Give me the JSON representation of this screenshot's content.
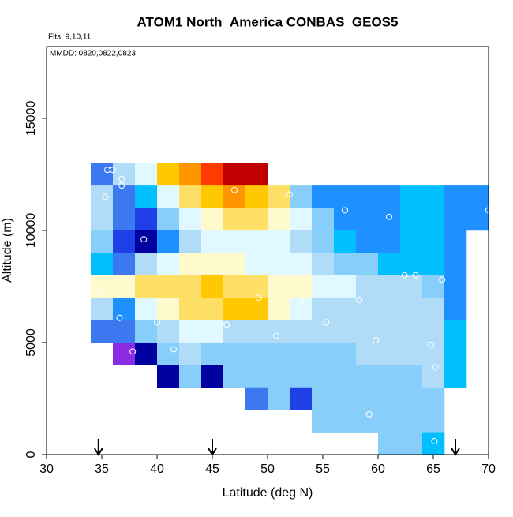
{
  "chart_data": {
    "type": "heatmap",
    "title": "ATOM1 North_America CONBAS_GEOS5",
    "flights_note": "Flts: 9,10,11",
    "dates_note": "MMDD: 0820,0822,0823",
    "x_label": "Latitude (deg N)",
    "y_label": "Altitude (m)",
    "xlim": [
      30,
      70
    ],
    "xticks": [
      30,
      35,
      40,
      45,
      50,
      55,
      60,
      65,
      70
    ],
    "ylim": [
      0,
      18200
    ],
    "yticks": [
      0,
      5000,
      10000,
      15000
    ],
    "x_edges": [
      34,
      36,
      38,
      40,
      42,
      44,
      46,
      48,
      50,
      52,
      54,
      56,
      58,
      60,
      62,
      64,
      66,
      68,
      70
    ],
    "y_edges": [
      13000,
      12000,
      11000,
      10000,
      9000,
      8000,
      7000,
      6000,
      5000,
      4000,
      3000,
      2000,
      1000,
      0
    ],
    "palette": [
      "#8a2be2",
      "#0000a0",
      "#1e40e6",
      "#3c78f0",
      "#1e90ff",
      "#00bfff",
      "#87cefa",
      "#b0dcf8",
      "#e0f8ff",
      "#fffacd",
      "#ffe066",
      "#ffc800",
      "#ff9600",
      "#ff3c00",
      "#c00000"
    ],
    "values": [
      [
        3,
        7,
        8,
        11,
        12,
        13,
        14,
        14,
        null,
        null,
        null,
        null,
        null,
        null,
        null,
        null,
        null,
        null
      ],
      [
        7,
        3,
        5,
        8,
        10,
        11,
        12,
        11,
        10,
        6,
        4,
        4,
        4,
        4,
        5,
        5,
        4,
        4
      ],
      [
        7,
        3,
        2,
        6,
        8,
        9,
        10,
        10,
        9,
        8,
        6,
        4,
        4,
        4,
        5,
        5,
        4,
        4
      ],
      [
        6,
        2,
        1,
        4,
        7,
        8,
        8,
        8,
        8,
        7,
        6,
        5,
        4,
        4,
        5,
        5,
        4,
        null
      ],
      [
        5,
        3,
        7,
        8,
        9,
        9,
        9,
        8,
        8,
        8,
        7,
        6,
        6,
        5,
        5,
        5,
        4,
        null
      ],
      [
        9,
        9,
        10,
        10,
        10,
        11,
        10,
        10,
        9,
        9,
        8,
        8,
        7,
        7,
        7,
        6,
        4,
        null
      ],
      [
        7,
        4,
        8,
        9,
        10,
        10,
        11,
        11,
        9,
        8,
        7,
        7,
        7,
        7,
        7,
        7,
        4,
        null
      ],
      [
        3,
        3,
        6,
        7,
        8,
        8,
        7,
        7,
        7,
        7,
        7,
        7,
        7,
        7,
        7,
        7,
        5,
        null
      ],
      [
        null,
        0,
        1,
        6,
        7,
        6,
        6,
        6,
        6,
        6,
        6,
        6,
        7,
        7,
        7,
        7,
        5,
        null
      ],
      [
        null,
        null,
        null,
        1,
        6,
        1,
        6,
        6,
        6,
        6,
        6,
        6,
        6,
        6,
        6,
        7,
        5,
        null
      ],
      [
        null,
        null,
        null,
        null,
        null,
        null,
        null,
        3,
        6,
        2,
        6,
        6,
        6,
        6,
        6,
        6,
        null,
        null
      ],
      [
        null,
        null,
        null,
        null,
        null,
        null,
        null,
        null,
        null,
        null,
        6,
        6,
        6,
        6,
        6,
        6,
        null,
        null
      ],
      [
        null,
        null,
        null,
        null,
        null,
        null,
        null,
        null,
        null,
        null,
        null,
        null,
        null,
        6,
        6,
        5,
        null,
        null
      ]
    ],
    "points": {
      "color": "#ffffff",
      "x": [
        35.5,
        36,
        36.8,
        36.8,
        35.3,
        47,
        52,
        57,
        61,
        70,
        38.8,
        62.4,
        63.4,
        65.8,
        34.9,
        49.2,
        53.2,
        58.3,
        36.6,
        40,
        55.3,
        46.3,
        50.8,
        59.8,
        64.8,
        41.5,
        37.8,
        65.2,
        59.2,
        65.1
      ],
      "y": [
        12700,
        12700,
        12300,
        12000,
        11500,
        11800,
        11600,
        10900,
        10600,
        10900,
        9600,
        8000,
        8000,
        7800,
        7200,
        7000,
        6800,
        6900,
        6100,
        5900,
        5900,
        5800,
        5300,
        5100,
        4900,
        4700,
        4600,
        3900,
        1800,
        600
      ]
    },
    "markers": [
      34.7,
      45,
      67
    ]
  }
}
